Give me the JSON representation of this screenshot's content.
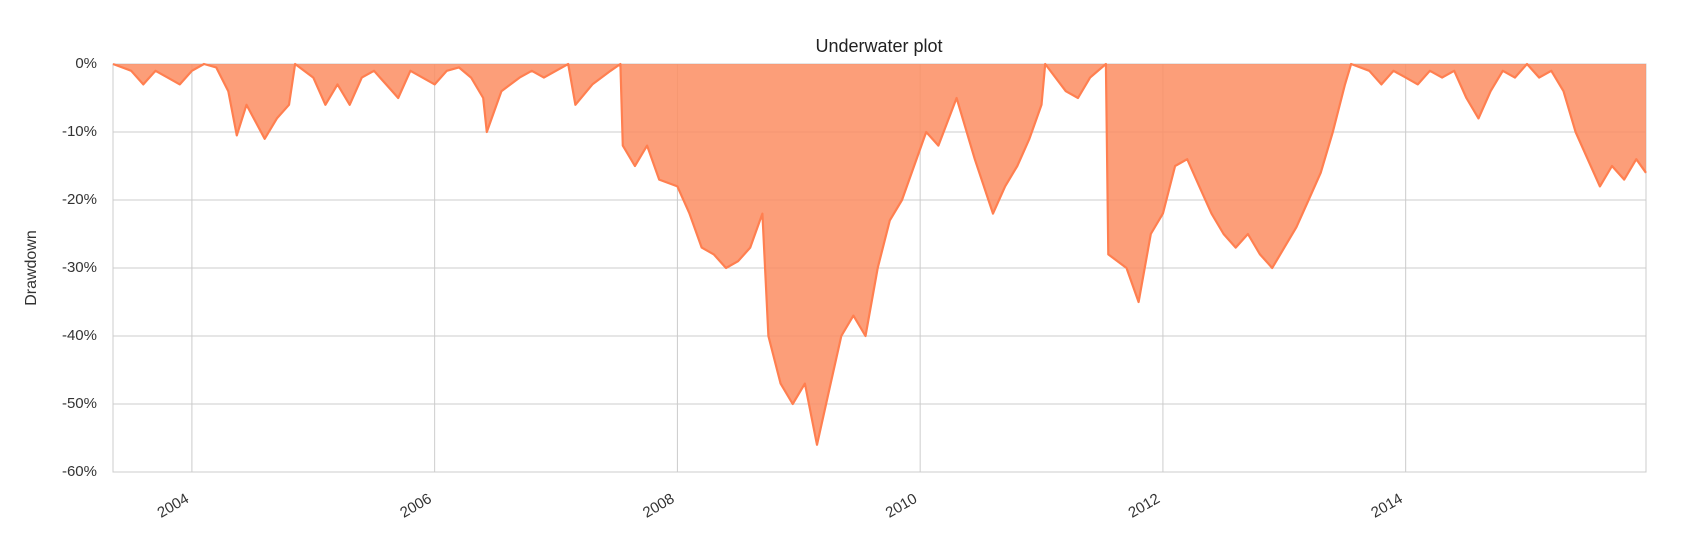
{
  "chart_data": {
    "type": "area",
    "title": "Underwater plot",
    "y_label": "Drawdown",
    "x": [
      2003.35,
      2003.5,
      2003.6,
      2003.7,
      2003.8,
      2003.9,
      2004.0,
      2004.1,
      2004.2,
      2004.3,
      2004.37,
      2004.45,
      2004.6,
      2004.7,
      2004.8,
      2004.85,
      2005.0,
      2005.1,
      2005.2,
      2005.3,
      2005.4,
      2005.5,
      2005.6,
      2005.7,
      2005.8,
      2006.0,
      2006.1,
      2006.2,
      2006.3,
      2006.4,
      2006.43,
      2006.55,
      2006.7,
      2006.8,
      2006.9,
      2007.0,
      2007.1,
      2007.16,
      2007.3,
      2007.45,
      2007.53,
      2007.55,
      2007.65,
      2007.75,
      2007.85,
      2008.0,
      2008.1,
      2008.2,
      2008.3,
      2008.4,
      2008.5,
      2008.6,
      2008.7,
      2008.75,
      2008.85,
      2008.95,
      2009.05,
      2009.15,
      2009.25,
      2009.35,
      2009.45,
      2009.55,
      2009.65,
      2009.75,
      2009.85,
      2009.95,
      2010.05,
      2010.15,
      2010.3,
      2010.45,
      2010.6,
      2010.7,
      2010.8,
      2010.9,
      2011.0,
      2011.03,
      2011.2,
      2011.3,
      2011.4,
      2011.53,
      2011.55,
      2011.7,
      2011.8,
      2011.9,
      2012.0,
      2012.1,
      2012.2,
      2012.3,
      2012.4,
      2012.5,
      2012.6,
      2012.7,
      2012.8,
      2012.9,
      2013.0,
      2013.1,
      2013.2,
      2013.3,
      2013.4,
      2013.5,
      2013.55,
      2013.7,
      2013.8,
      2013.9,
      2014.0,
      2014.1,
      2014.2,
      2014.3,
      2014.4,
      2014.5,
      2014.6,
      2014.7,
      2014.8,
      2014.9,
      2015.0,
      2015.1,
      2015.2,
      2015.3,
      2015.4,
      2015.5,
      2015.6,
      2015.7,
      2015.8,
      2015.9,
      2015.98
    ],
    "values": [
      0,
      -1,
      -3,
      -1,
      -2,
      -3,
      -1,
      0,
      -0.5,
      -4,
      -10.5,
      -6,
      -11,
      -8,
      -6,
      0,
      -2,
      -6,
      -3,
      -6,
      -2,
      -1,
      -3,
      -5,
      -1,
      -3,
      -1,
      -0.5,
      -2,
      -5,
      -10,
      -4,
      -2,
      -1,
      -2,
      -1,
      0,
      -6,
      -3,
      -1,
      0,
      -12,
      -15,
      -12,
      -17,
      -18,
      -22,
      -27,
      -28,
      -30,
      -29,
      -27,
      -22,
      -40,
      -47,
      -50,
      -47,
      -56,
      -48,
      -40,
      -37,
      -40,
      -30,
      -23,
      -20,
      -15,
      -10,
      -12,
      -5,
      -14,
      -22,
      -18,
      -15,
      -11,
      -6,
      0,
      -4,
      -5,
      -2,
      0,
      -28,
      -30,
      -35,
      -25,
      -22,
      -15,
      -14,
      -18,
      -22,
      -25,
      -27,
      -25,
      -28,
      -30,
      -27,
      -24,
      -20,
      -16,
      -10,
      -3,
      0,
      -1,
      -3,
      -1,
      -2,
      -3,
      -1,
      -2,
      -1,
      -5,
      -8,
      -4,
      -1,
      -2,
      0,
      -2,
      -1,
      -4,
      -10,
      -14,
      -18,
      -15,
      -17,
      -14,
      -16
    ],
    "color": "#fc8d62",
    "line_color": "#ff7f50",
    "xlim": [
      2003.35,
      2015.98
    ],
    "xticks": [
      2004,
      2006,
      2008,
      2010,
      2012,
      2014
    ],
    "ylim": [
      -60,
      0
    ],
    "yticks": [
      {
        "value": -60,
        "label": "-60%"
      },
      {
        "value": -50,
        "label": "-50%"
      },
      {
        "value": -40,
        "label": "-40%"
      },
      {
        "value": -30,
        "label": "-30%"
      },
      {
        "value": -20,
        "label": "-20%"
      },
      {
        "value": -10,
        "label": "-10%"
      },
      {
        "value": 0,
        "label": "0%"
      }
    ],
    "grid": true
  }
}
